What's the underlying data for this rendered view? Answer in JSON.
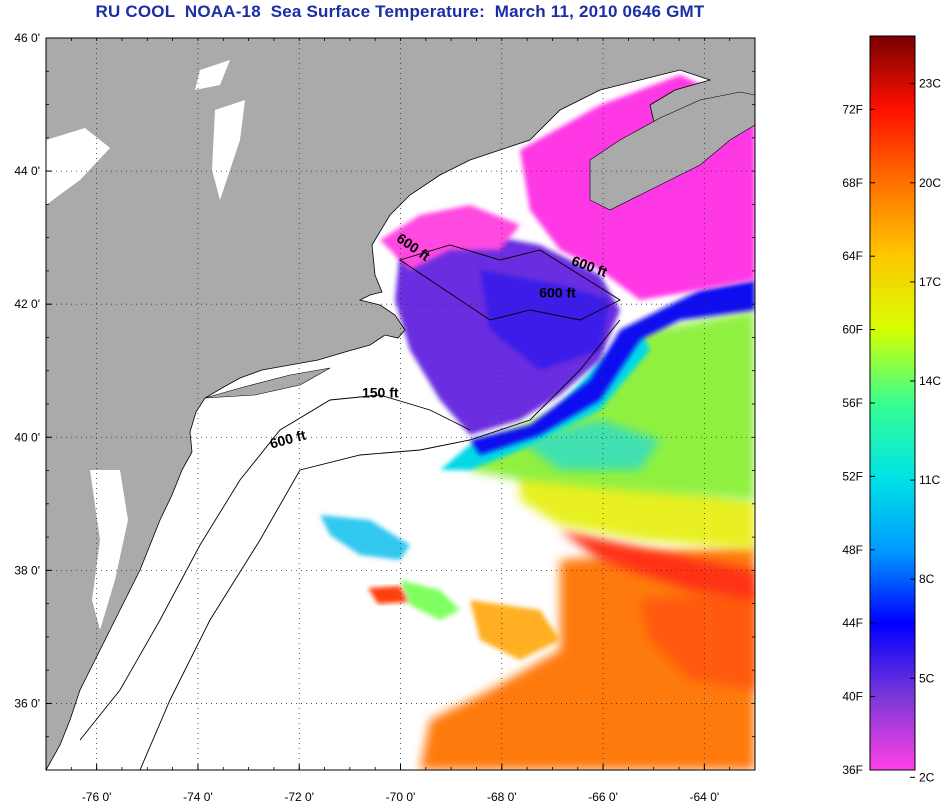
{
  "title": "RU COOL  NOAA-18  Sea Surface Temperature:  March 11, 2010 0646 GMT",
  "map": {
    "lon_min": -77.0,
    "lon_max": -63.0,
    "lat_min": 35.0,
    "lat_max": 46.0,
    "lon_ticks": [
      {
        "value": -76,
        "label": "-76 0'"
      },
      {
        "value": -74,
        "label": "-74 0'"
      },
      {
        "value": -72,
        "label": "-72 0'"
      },
      {
        "value": -70,
        "label": "-70 0'"
      },
      {
        "value": -68,
        "label": "-68 0'"
      },
      {
        "value": -66,
        "label": "-66 0'"
      },
      {
        "value": -64,
        "label": "-64 0'"
      }
    ],
    "lat_ticks": [
      {
        "value": 46,
        "label": "46 0'"
      },
      {
        "value": 44,
        "label": "44 0'"
      },
      {
        "value": 42,
        "label": "42 0'"
      },
      {
        "value": 40,
        "label": "40 0'"
      },
      {
        "value": 38,
        "label": "38 0'"
      },
      {
        "value": 36,
        "label": "36 0'"
      }
    ],
    "grid": "dotted",
    "isobath_labels": [
      {
        "text": "600 ft",
        "lon": -69.8,
        "lat": 42.8,
        "rotate": 35
      },
      {
        "text": "600 ft",
        "lon": -66.3,
        "lat": 42.5,
        "rotate": 20
      },
      {
        "text": "600 ft",
        "lon": -66.9,
        "lat": 42.1,
        "rotate": 0
      },
      {
        "text": "150 ft",
        "lon": -70.4,
        "lat": 40.6,
        "rotate": 0
      },
      {
        "text": "600 ft",
        "lon": -72.2,
        "lat": 39.9,
        "rotate": -15
      }
    ]
  },
  "colorbar": {
    "stops": [
      "#ff40e6",
      "#7a38d8",
      "#0000ff",
      "#009cff",
      "#00e4e4",
      "#38ff90",
      "#d6ff00",
      "#ffc800",
      "#ff7000",
      "#ff1000",
      "#7a0000"
    ],
    "fahrenheit": [
      {
        "value": 36,
        "label": "36F"
      },
      {
        "value": 40,
        "label": "40F"
      },
      {
        "value": 44,
        "label": "44F"
      },
      {
        "value": 48,
        "label": "48F"
      },
      {
        "value": 52,
        "label": "52F"
      },
      {
        "value": 56,
        "label": "56F"
      },
      {
        "value": 60,
        "label": "60F"
      },
      {
        "value": 64,
        "label": "64F"
      },
      {
        "value": 68,
        "label": "68F"
      },
      {
        "value": 72,
        "label": "72F"
      }
    ],
    "celsius": [
      {
        "value": 2,
        "label": "2C"
      },
      {
        "value": 5,
        "label": "5C"
      },
      {
        "value": 8,
        "label": "8C"
      },
      {
        "value": 11,
        "label": "11C"
      },
      {
        "value": 14,
        "label": "14C"
      },
      {
        "value": 17,
        "label": "17C"
      },
      {
        "value": 20,
        "label": "20C"
      },
      {
        "value": 23,
        "label": "23C"
      }
    ],
    "range_f": [
      36,
      76
    ]
  },
  "colors": {
    "land": "#aaaaaa",
    "no_data": "#ffffff",
    "title": "#1a2ea8"
  }
}
